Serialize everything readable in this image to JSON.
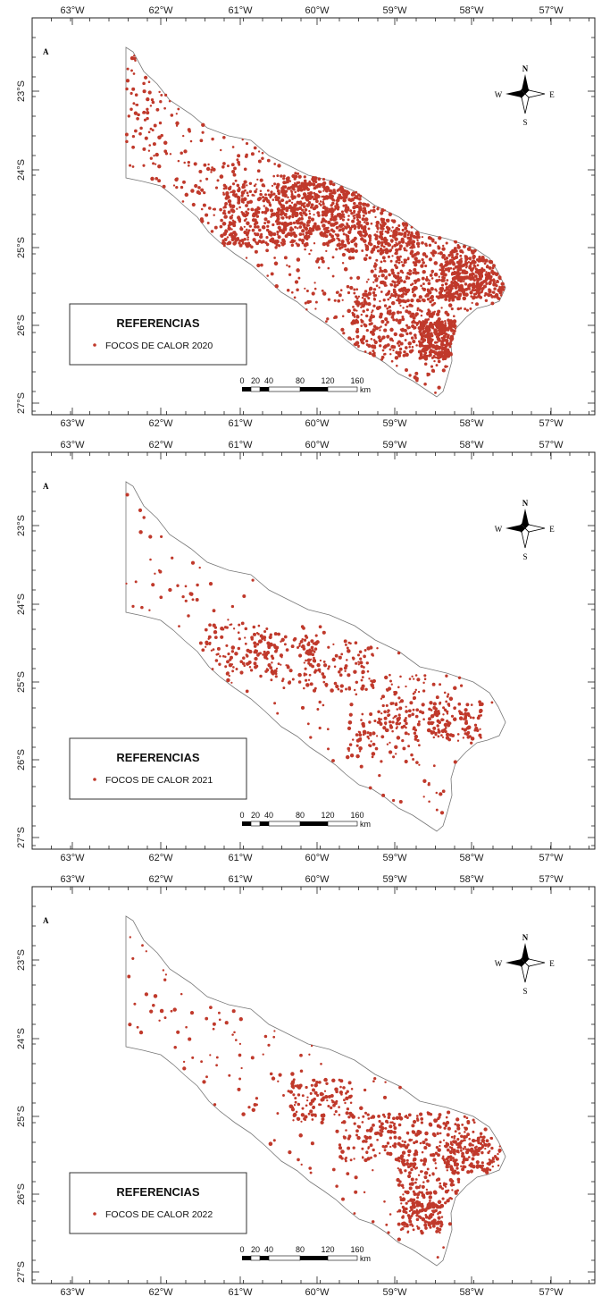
{
  "panels": [
    {
      "panel_letter": "A",
      "legend": {
        "title": "REFERENCIAS",
        "item": "FOCOS DE CALOR 2020"
      },
      "hotspot_density": "high"
    },
    {
      "panel_letter": "A",
      "legend": {
        "title": "REFERENCIAS",
        "item": "FOCOS DE CALOR 2021"
      },
      "hotspot_density": "low"
    },
    {
      "panel_letter": "A",
      "legend": {
        "title": "REFERENCIAS",
        "item": "FOCOS DE CALOR 2022"
      },
      "hotspot_density": "medium"
    }
  ],
  "axes": {
    "longitude_labels": [
      "63°W",
      "62°W",
      "61°W",
      "60°W",
      "59°W",
      "58°W",
      "57°W"
    ],
    "latitude_labels": [
      "23°S",
      "24°S",
      "25°S",
      "26°S",
      "27°S"
    ]
  },
  "compass": {
    "n": "N",
    "s": "S",
    "e": "E",
    "w": "W"
  },
  "scale_bar": {
    "labels": [
      "0",
      "20",
      "40",
      "80",
      "120",
      "160"
    ],
    "unit": "km"
  },
  "colors": {
    "hotspot": "#c0392b",
    "boundary": "#777777",
    "frame": "#222222"
  }
}
